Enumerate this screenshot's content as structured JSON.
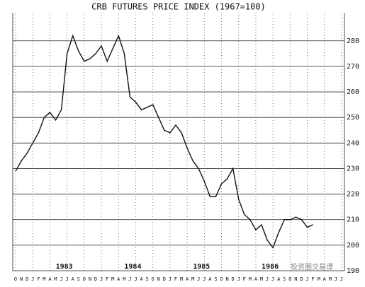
{
  "chart_data": {
    "type": "line",
    "title": "CRB FUTURES PRICE INDEX (1967=100)",
    "categories": [
      "O",
      "N",
      "D",
      "J",
      "F",
      "M",
      "A",
      "M",
      "J",
      "J",
      "A",
      "S",
      "O",
      "N",
      "D",
      "J",
      "F",
      "M",
      "A",
      "M",
      "J",
      "J",
      "A",
      "S",
      "O",
      "N",
      "D",
      "J",
      "F",
      "M",
      "A",
      "M",
      "J",
      "J",
      "A",
      "S",
      "O",
      "N",
      "D",
      "J",
      "F",
      "M",
      "A",
      "M",
      "J",
      "J",
      "A",
      "S",
      "O",
      "N",
      "D",
      "J",
      "F",
      "M",
      "A",
      "M",
      "J",
      "J"
    ],
    "year_labels": [
      "1983",
      "1984",
      "1985",
      "1986"
    ],
    "series": [
      {
        "name": "CRB",
        "color": "#111111",
        "values": [
          229,
          233,
          236,
          240,
          244,
          250,
          252,
          249,
          253,
          275,
          282,
          276,
          272,
          273,
          275,
          278,
          272,
          277,
          282,
          275,
          258,
          256,
          253,
          254,
          255,
          250,
          245,
          244,
          247,
          244,
          238,
          233,
          230,
          225,
          219,
          219,
          224,
          226,
          230,
          218,
          212,
          210,
          206,
          208,
          202,
          199,
          205,
          210,
          210,
          211,
          210,
          207,
          208,
          null,
          null,
          null,
          null,
          null
        ]
      }
    ],
    "ylim": [
      190,
      291
    ],
    "yticks": [
      190,
      200,
      210,
      220,
      230,
      240,
      250,
      260,
      270,
      280
    ],
    "grid": true,
    "watermark": "投资圈交易谭"
  }
}
